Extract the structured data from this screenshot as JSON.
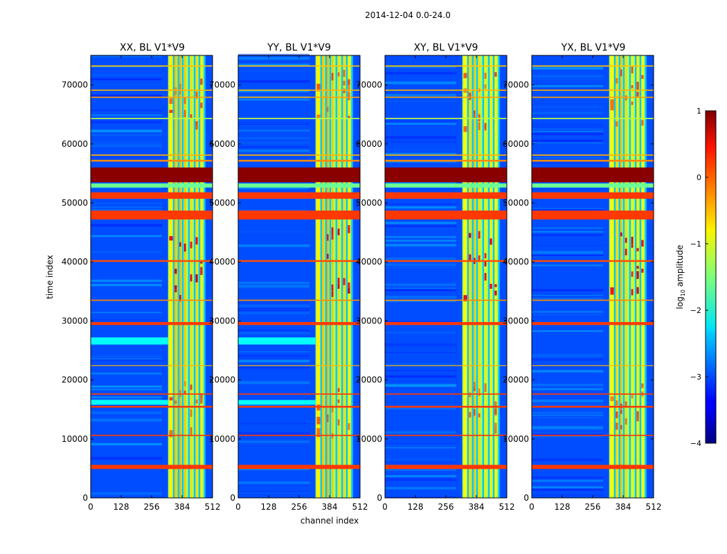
{
  "chart_data": {
    "type": "heatmap",
    "suptitle": "2014-12-04 0.0-24.0",
    "xlabel": "channel index",
    "ylabel": "time index",
    "xlim": [
      0,
      512
    ],
    "ylim": [
      0,
      75000
    ],
    "xticks": [
      0,
      128,
      256,
      384,
      512
    ],
    "yticks": [
      0,
      10000,
      20000,
      30000,
      40000,
      50000,
      60000,
      70000
    ],
    "panels": [
      {
        "title": "XX, BL V1*V9"
      },
      {
        "title": "YY, BL V1*V9"
      },
      {
        "title": "XY, BL V1*V9"
      },
      {
        "title": "YX, BL V1*V9"
      }
    ],
    "colorbar": {
      "label_prefix": "log",
      "label_sub": "10",
      "label_suffix": " amplitude",
      "range": [
        -4,
        1
      ],
      "ticks": [
        "1",
        "0",
        "−1",
        "−2",
        "−3",
        "−4"
      ],
      "colormap": "jet"
    },
    "structure": {
      "band_channels": [
        {
          "from": 325,
          "to": 478,
          "level": -1.3
        },
        {
          "from": 330,
          "to": 345,
          "level": -0.8
        },
        {
          "from": 352,
          "to": 362,
          "level": -0.6
        },
        {
          "from": 372,
          "to": 380,
          "level": -0.5
        },
        {
          "from": 392,
          "to": 400,
          "level": -0.6
        },
        {
          "from": 418,
          "to": 426,
          "level": -0.7
        },
        {
          "from": 440,
          "to": 450,
          "level": -0.7
        },
        {
          "from": 460,
          "to": 470,
          "level": -0.8
        }
      ],
      "band_gaps": [
        348,
        368,
        386,
        412,
        436,
        456,
        478
      ],
      "hot_time_ranges": [
        [
          33000,
          45000
        ],
        [
          62000,
          72000
        ],
        [
          10000,
          19000
        ]
      ],
      "rfi_rows_time": [
        {
          "from": 4900,
          "to": 5600,
          "level": 0.1
        },
        {
          "from": 10500,
          "to": 10700,
          "level": 0.1
        },
        {
          "from": 15300,
          "to": 15600,
          "level": 0.1
        },
        {
          "from": 17500,
          "to": 17700,
          "level": 0.1
        },
        {
          "from": 22400,
          "to": 22500,
          "level": -0.5
        },
        {
          "from": 29300,
          "to": 29800,
          "level": 0.1
        },
        {
          "from": 33400,
          "to": 33600,
          "level": -0.3
        },
        {
          "from": 40000,
          "to": 40300,
          "level": 0.0
        },
        {
          "from": 47200,
          "to": 48700,
          "level": 0.1
        },
        {
          "from": 50700,
          "to": 51800,
          "level": 0.1
        },
        {
          "from": 52600,
          "to": 53300,
          "level": -1.6
        },
        {
          "from": 53500,
          "to": 56000,
          "level": 0.95
        },
        {
          "from": 57000,
          "to": 57300,
          "level": -0.3
        },
        {
          "from": 58000,
          "to": 58200,
          "level": -0.5
        },
        {
          "from": 64200,
          "to": 64400,
          "level": -1.2
        },
        {
          "from": 67800,
          "to": 68000,
          "level": -0.4
        },
        {
          "from": 69000,
          "to": 69200,
          "level": -0.5
        },
        {
          "from": 73100,
          "to": 73300,
          "level": -0.6
        }
      ],
      "cyan_rows_time": [
        {
          "from": 26000,
          "to": 27200,
          "panels": [
            0,
            1
          ]
        },
        {
          "from": 15800,
          "to": 16600,
          "panels": [
            0,
            1
          ]
        }
      ],
      "background_level": -3.0
    }
  }
}
